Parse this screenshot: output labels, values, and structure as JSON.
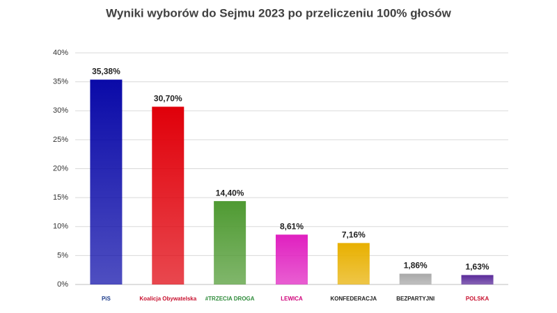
{
  "chart_data": {
    "type": "bar",
    "title": "Wyniki wyborów do Sejmu 2023 po przeliczeniu 100% głosów",
    "categories": [
      "PiS",
      "Koalicja Obywatelska",
      "#TRZECIA DROGA",
      "LEWICA",
      "KONFEDERACJA",
      "BEZPARTYJNI",
      "POLSKA"
    ],
    "values": [
      35.38,
      30.7,
      14.4,
      8.61,
      7.16,
      1.86,
      1.63
    ],
    "value_labels": [
      "35,38%",
      "30,70%",
      "14,40%",
      "8,61%",
      "7,16%",
      "1,86%",
      "1,63%"
    ],
    "colors": [
      "#0a0aa8",
      "#e0000a",
      "#4f9a32",
      "#e020c0",
      "#e8b000",
      "#a8a8a8",
      "#5a2a9a"
    ],
    "label_colors": [
      "#1a3a8a",
      "#c8102e",
      "#2e8b3a",
      "#d0007a",
      "#222222",
      "#222222",
      "#c8102e"
    ],
    "ylim": [
      0,
      40
    ],
    "yticks": [
      {
        "value": 0,
        "label": "0%"
      },
      {
        "value": 5,
        "label": "5%"
      },
      {
        "value": 10,
        "label": "10%"
      },
      {
        "value": 15,
        "label": "15%"
      },
      {
        "value": 20,
        "label": "20%"
      },
      {
        "value": 25,
        "label": "25%"
      },
      {
        "value": 30,
        "label": "30%"
      },
      {
        "value": 35,
        "label": "35%"
      },
      {
        "value": 40,
        "label": "40%"
      }
    ],
    "grid": true
  }
}
